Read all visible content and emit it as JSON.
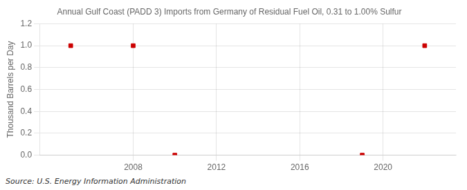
{
  "chart_data": {
    "type": "scatter",
    "title": "Annual Gulf Coast (PADD 3) Imports from Germany of Residual Fuel Oil, 0.31 to 1.00% Sulfur",
    "ylabel": "Thousand Barrels per Day",
    "annotations": [
      "Source: U.S. Energy Information Administration"
    ],
    "x": [
      2005,
      2008,
      2010,
      2019,
      2022
    ],
    "values": [
      1.0,
      1.0,
      0.0,
      0.0,
      1.0
    ],
    "color": "#cc0000",
    "marker": "square",
    "xlim": [
      2003.5,
      2023.5
    ],
    "ylim": [
      0.0,
      1.2
    ],
    "xticks": [
      2008,
      2012,
      2016,
      2020
    ],
    "yticks": [
      {
        "value": 0.0,
        "label": "0.0"
      },
      0.2,
      0.4,
      0.6,
      0.8,
      {
        "value": 1.0,
        "label": "1.0"
      },
      1.2
    ],
    "grid": true
  }
}
